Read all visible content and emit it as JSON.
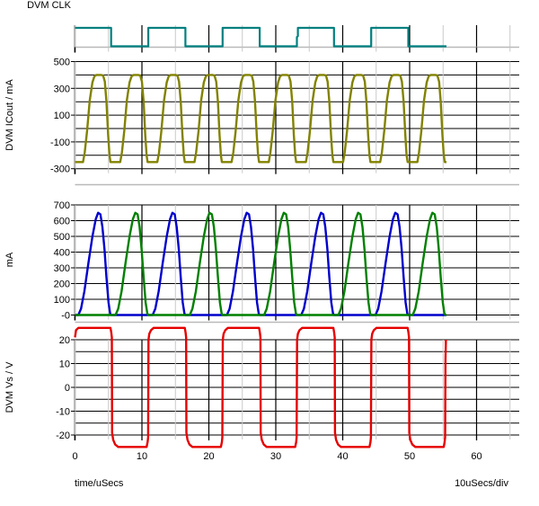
{
  "labels": {
    "clk": "DVM CLK",
    "icout": "DVM ICout / mA",
    "ma": "mA",
    "vs": "DVM Vs / V",
    "time_axis": "time/uSecs",
    "per_div": "10uSecs/div"
  },
  "colors": {
    "clock": "#008080",
    "icout": "#828200",
    "diode1": "#0000cc",
    "diode2": "#008000",
    "vs": "#e60000",
    "grid_major": "#000000",
    "grid_minor": "#c9c9c9",
    "axis_gray": "#b9b9b9",
    "text": "#000000"
  },
  "x_axis": {
    "label": "time/uSecs",
    "per_div": "10uSecs/div",
    "range": [
      0,
      66.4
    ],
    "ticks": [
      [
        0,
        "0"
      ],
      [
        10,
        "10"
      ],
      [
        20,
        "20"
      ],
      [
        30,
        "30"
      ],
      [
        40,
        "40"
      ],
      [
        50,
        "50"
      ],
      [
        60,
        "60"
      ]
    ],
    "minor": [
      5,
      15,
      25,
      35,
      45,
      55,
      65
    ]
  },
  "chart_data": [
    {
      "id": "clk",
      "type": "line",
      "ylabel": "DVM CLK",
      "y_range": [
        0,
        1
      ],
      "grid": "baseline-only",
      "series": [
        {
          "name": "clock",
          "color": "#008080",
          "points": [
            [
              0,
              1
            ],
            [
              5.4,
              1
            ],
            [
              5.4,
              0
            ],
            [
              10.95,
              0
            ],
            [
              10.95,
              1
            ],
            [
              16.5,
              1
            ],
            [
              16.5,
              0
            ],
            [
              22.05,
              0
            ],
            [
              22.05,
              1
            ],
            [
              27.6,
              1
            ],
            [
              27.6,
              0
            ],
            [
              33.15,
              0
            ],
            [
              33.15,
              0.5
            ],
            [
              33.3,
              0.55
            ],
            [
              33.3,
              1
            ],
            [
              38.7,
              1
            ],
            [
              38.7,
              0
            ],
            [
              44.25,
              0
            ],
            [
              44.25,
              1
            ],
            [
              49.8,
              1
            ],
            [
              49.8,
              0
            ],
            [
              55.5,
              0
            ]
          ]
        }
      ]
    },
    {
      "id": "icout",
      "type": "line",
      "ylabel": "DVM ICout / mA",
      "y_range": [
        -300,
        500
      ],
      "y_grid_step": 100,
      "y_tick_labels": [
        [
          500,
          "500"
        ],
        [
          300,
          "300"
        ],
        [
          100,
          "100"
        ],
        [
          -100,
          "-100"
        ],
        [
          -300,
          "-300"
        ]
      ],
      "series": [
        {
          "name": "ICout",
          "color": "#828200",
          "tiled": {
            "starts": [
              0,
              5.55,
              11.1,
              16.65,
              22.2,
              27.75,
              33.3,
              38.85,
              44.4,
              49.95
            ],
            "shape": [
              [
                0,
                -250
              ],
              [
                1.2,
                -250
              ],
              [
                1.45,
                -180
              ],
              [
                1.8,
                -20
              ],
              [
                2.2,
                210
              ],
              [
                2.6,
                345
              ],
              [
                2.9,
                390
              ],
              [
                3.2,
                400
              ],
              [
                3.9,
                400
              ],
              [
                4.2,
                395
              ],
              [
                4.45,
                350
              ],
              [
                4.7,
                200
              ],
              [
                4.95,
                -50
              ],
              [
                5.15,
                -200
              ],
              [
                5.3,
                -250
              ],
              [
                5.55,
                -250
              ]
            ]
          }
        }
      ]
    },
    {
      "id": "ma",
      "type": "line",
      "ylabel": "mA",
      "y_range": [
        0,
        700
      ],
      "y_grid_step": 100,
      "y_tick_labels": [
        [
          700,
          "700"
        ],
        [
          600,
          "600"
        ],
        [
          500,
          "500"
        ],
        [
          400,
          "400"
        ],
        [
          300,
          "300"
        ],
        [
          200,
          "200"
        ],
        [
          100,
          "100"
        ],
        [
          0,
          "-0"
        ]
      ],
      "series": [
        {
          "name": "diode1",
          "color": "#0000cc",
          "tiled": {
            "head": [
              0,
              0
            ],
            "starts": [
              0,
              11.1,
              22.2,
              33.3,
              44.4
            ],
            "shape": [
              [
                0.5,
                0
              ],
              [
                0.9,
                40
              ],
              [
                1.4,
                150
              ],
              [
                2.0,
                330
              ],
              [
                2.6,
                500
              ],
              [
                3.1,
                610
              ],
              [
                3.45,
                650
              ],
              [
                3.8,
                640
              ],
              [
                4.1,
                560
              ],
              [
                4.4,
                420
              ],
              [
                4.7,
                240
              ],
              [
                5.0,
                80
              ],
              [
                5.25,
                10
              ],
              [
                5.4,
                0
              ]
            ],
            "tail": [
              55.5,
              0
            ]
          }
        },
        {
          "name": "diode2",
          "color": "#008000",
          "tiled": {
            "head": [
              0,
              0
            ],
            "starts": [
              5.55,
              16.65,
              27.75,
              38.85,
              49.95
            ],
            "shape": [
              [
                0.5,
                0
              ],
              [
                0.9,
                40
              ],
              [
                1.4,
                150
              ],
              [
                2.0,
                330
              ],
              [
                2.6,
                500
              ],
              [
                3.1,
                610
              ],
              [
                3.45,
                650
              ],
              [
                3.8,
                640
              ],
              [
                4.1,
                560
              ],
              [
                4.4,
                420
              ],
              [
                4.7,
                240
              ],
              [
                5.0,
                80
              ],
              [
                5.25,
                10
              ],
              [
                5.4,
                0
              ]
            ],
            "tail": [
              55.5,
              0
            ]
          }
        }
      ]
    },
    {
      "id": "vs",
      "type": "line",
      "ylabel": "DVM Vs / V",
      "y_range": [
        -20,
        20
      ],
      "y_grid_step": 5,
      "y_tick_labels": [
        [
          20,
          "20"
        ],
        [
          10,
          "10"
        ],
        [
          0,
          "0"
        ],
        [
          -10,
          "-10"
        ],
        [
          -20,
          "-20"
        ]
      ],
      "series": [
        {
          "name": "Vs",
          "color": "#e60000",
          "points": [
            [
              0,
              21
            ],
            [
              0.15,
              24
            ],
            [
              0.5,
              25
            ],
            [
              5.3,
              25
            ],
            [
              5.42,
              23
            ],
            [
              5.5,
              21
            ],
            [
              5.55,
              -19
            ],
            [
              5.7,
              -22
            ],
            [
              6.0,
              -24
            ],
            [
              6.45,
              -25
            ],
            [
              10.7,
              -25
            ],
            [
              10.85,
              -23
            ],
            [
              10.92,
              -21
            ],
            [
              10.98,
              20
            ],
            [
              11.1,
              22.5
            ],
            [
              11.35,
              24
            ],
            [
              11.75,
              25
            ],
            [
              16.4,
              25
            ],
            [
              16.52,
              23
            ],
            [
              16.6,
              21
            ],
            [
              16.65,
              -19
            ],
            [
              16.8,
              -22
            ],
            [
              17.1,
              -24
            ],
            [
              17.55,
              -25
            ],
            [
              21.8,
              -25
            ],
            [
              21.95,
              -23
            ],
            [
              22.02,
              -21
            ],
            [
              22.08,
              20
            ],
            [
              22.2,
              22.5
            ],
            [
              22.45,
              24
            ],
            [
              22.85,
              25
            ],
            [
              27.5,
              25
            ],
            [
              27.62,
              23
            ],
            [
              27.7,
              21
            ],
            [
              27.75,
              -19
            ],
            [
              27.9,
              -22
            ],
            [
              28.2,
              -24
            ],
            [
              28.65,
              -25
            ],
            [
              32.9,
              -25
            ],
            [
              33.05,
              -23
            ],
            [
              33.12,
              -21
            ],
            [
              33.18,
              20
            ],
            [
              33.3,
              22.5
            ],
            [
              33.55,
              24
            ],
            [
              33.95,
              25
            ],
            [
              38.6,
              25
            ],
            [
              38.72,
              23
            ],
            [
              38.8,
              21
            ],
            [
              38.85,
              -19
            ],
            [
              39.0,
              -22
            ],
            [
              39.3,
              -24
            ],
            [
              39.75,
              -25
            ],
            [
              44.0,
              -25
            ],
            [
              44.15,
              -23
            ],
            [
              44.22,
              -21
            ],
            [
              44.28,
              20
            ],
            [
              44.4,
              22.5
            ],
            [
              44.65,
              24
            ],
            [
              45.05,
              25
            ],
            [
              49.7,
              25
            ],
            [
              49.82,
              23
            ],
            [
              49.9,
              21
            ],
            [
              49.95,
              -19
            ],
            [
              50.1,
              -22
            ],
            [
              50.4,
              -24
            ],
            [
              50.85,
              -25
            ],
            [
              55.1,
              -25
            ],
            [
              55.22,
              -23
            ],
            [
              55.3,
              -21
            ],
            [
              55.36,
              12
            ],
            [
              55.42,
              20
            ]
          ]
        }
      ]
    }
  ]
}
